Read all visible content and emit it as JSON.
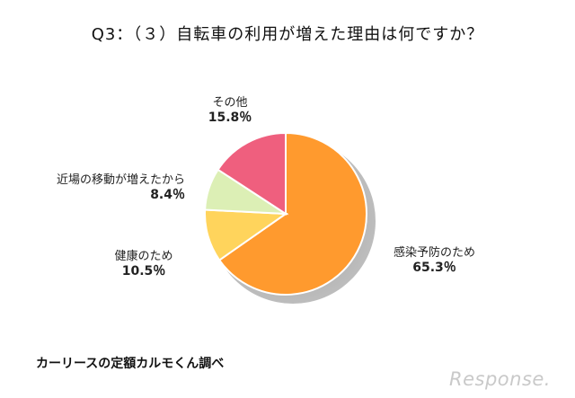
{
  "chart_data": {
    "type": "pie",
    "title": "Q3：（３）自転車の利用が増えた理由は何ですか？",
    "slices": [
      {
        "label": "感染予防のため",
        "value": 65.3,
        "value_label": "65.3％",
        "color": "#ff9a2e"
      },
      {
        "label": "健康のため",
        "value": 10.5,
        "value_label": "10.5％",
        "color": "#ffd45c"
      },
      {
        "label": "近場の移動が増えたから",
        "value": 8.4,
        "value_label": "8.4％",
        "color": "#dcefb5"
      },
      {
        "label": "その他",
        "value": 15.8,
        "value_label": "15.8％",
        "color": "#ef5f7e"
      }
    ]
  },
  "footer": {
    "source": "カーリースの定額カルモくん調べ",
    "brand": "Response."
  }
}
